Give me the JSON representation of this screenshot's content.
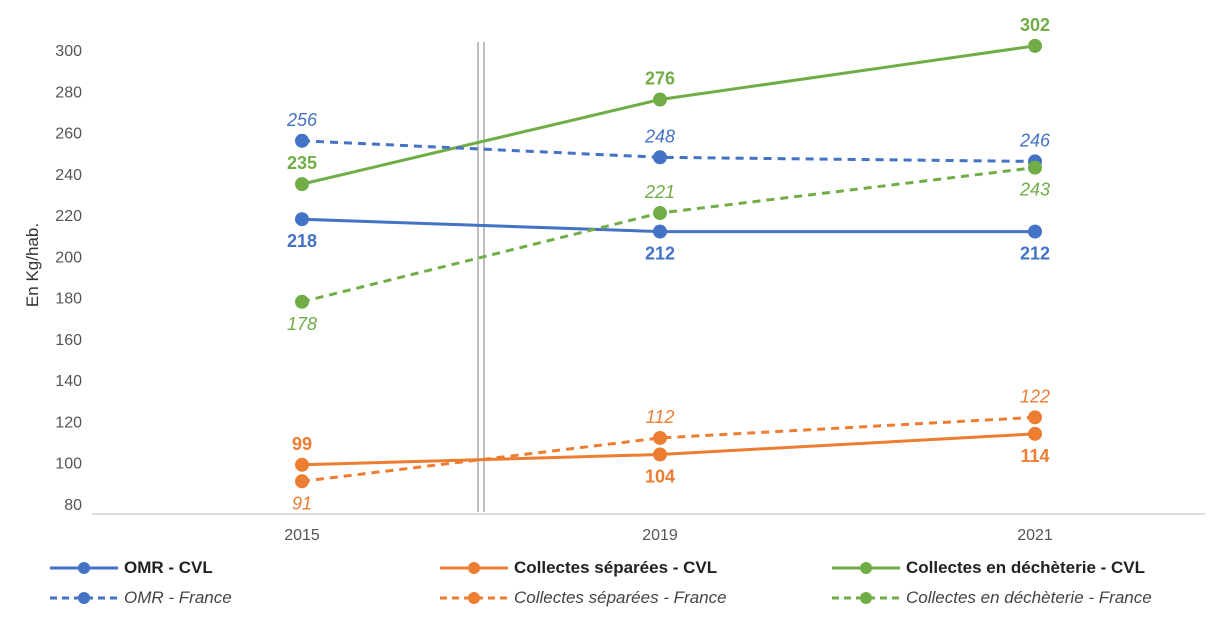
{
  "chart_data": {
    "type": "line",
    "categories": [
      "2015",
      "2019",
      "2021"
    ],
    "ylabel": "En Kg/hab.",
    "ylim": [
      80,
      300
    ],
    "yticks": [
      80,
      100,
      120,
      140,
      160,
      180,
      200,
      220,
      240,
      260,
      280,
      300
    ],
    "grid": false,
    "legend_position": "bottom",
    "series": [
      {
        "name": "OMR  - CVL",
        "values": [
          218,
          212,
          212
        ],
        "labels": [
          "218",
          "212",
          "212"
        ],
        "color": "#4472C4",
        "dashed": false,
        "label_side": [
          "below",
          "below",
          "below"
        ]
      },
      {
        "name": "Collectes séparées - CVL",
        "values": [
          99,
          104,
          114
        ],
        "labels": [
          "99",
          "104",
          "114"
        ],
        "color": "#ED7D31",
        "dashed": false,
        "label_side": [
          "above",
          "below",
          "below"
        ]
      },
      {
        "name": "Collectes en déchèterie - CVL",
        "values": [
          235,
          276,
          302
        ],
        "labels": [
          "235",
          "276",
          "302"
        ],
        "color": "#70AD47",
        "dashed": false,
        "label_side": [
          "above",
          "above",
          "above"
        ]
      },
      {
        "name": "OMR  - France",
        "values": [
          256,
          248,
          246
        ],
        "labels": [
          "256",
          "248",
          "246"
        ],
        "color": "#4472C4",
        "dashed": true,
        "label_side": [
          "above",
          "above",
          "above"
        ]
      },
      {
        "name": "Collectes séparées - France",
        "values": [
          91,
          112,
          122
        ],
        "labels": [
          "91",
          "112",
          "122"
        ],
        "color": "#ED7D31",
        "dashed": true,
        "label_side": [
          "below",
          "above",
          "above"
        ]
      },
      {
        "name": "Collectes en déchèterie - France",
        "values": [
          178,
          221,
          243
        ],
        "labels": [
          "178",
          "221",
          "243"
        ],
        "color": "#70AD47",
        "dashed": true,
        "label_side": [
          "below",
          "above",
          "below"
        ]
      }
    ]
  }
}
